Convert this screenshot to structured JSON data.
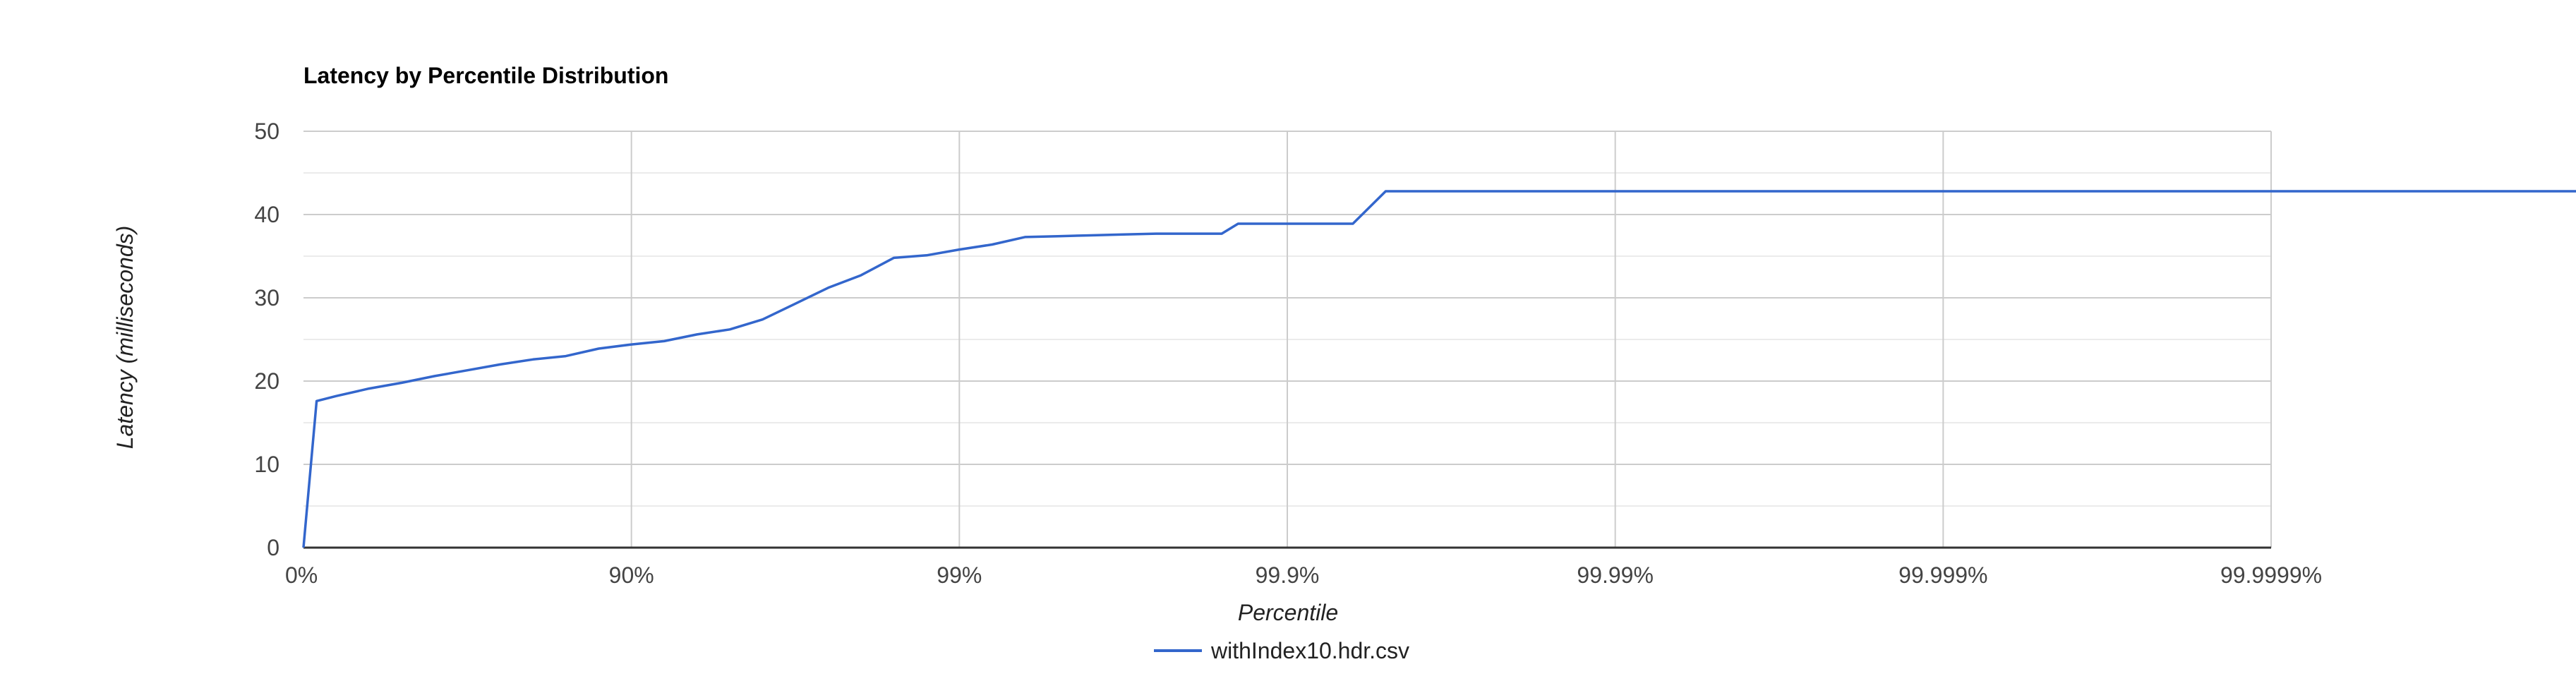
{
  "chart_data": {
    "type": "line",
    "title": "Latency by Percentile Distribution",
    "xlabel": "Percentile",
    "ylabel": "Latency (milliseconds)",
    "x_scale": "percentile-nines",
    "x_ticks": [
      "0%",
      "90%",
      "99%",
      "99.9%",
      "99.99%",
      "99.999%",
      "99.9999%"
    ],
    "x_tick_nines": [
      0,
      1,
      2,
      3,
      4,
      5,
      6
    ],
    "y_ticks": [
      0,
      10,
      20,
      30,
      40,
      50
    ],
    "ylim": [
      0,
      50
    ],
    "grid": true,
    "legend_position": "bottom",
    "colors": {
      "series": "#3366cc",
      "grid_major": "#cccccc",
      "grid_minor": "#ebebeb",
      "axis": "#333333",
      "text": "#444444",
      "title": "#000000"
    },
    "series": [
      {
        "name": "withIndex10.hdr.csv",
        "nines": [
          0,
          0.04,
          0.1,
          0.2,
          0.3,
          0.4,
          0.5,
          0.6,
          0.7,
          0.8,
          0.9,
          1.0,
          1.1,
          1.2,
          1.3,
          1.4,
          1.5,
          1.6,
          1.7,
          1.8,
          1.9,
          2.0,
          2.1,
          2.2,
          2.3,
          2.4,
          2.5,
          2.6,
          2.7,
          2.8,
          2.85,
          2.9,
          3.0,
          3.1,
          3.2,
          3.3,
          3.4,
          7.0
        ],
        "latency": [
          0,
          17.6,
          18.2,
          19.1,
          19.8,
          20.6,
          21.3,
          22.0,
          22.6,
          23.0,
          23.9,
          24.4,
          24.8,
          25.6,
          26.2,
          27.4,
          29.3,
          31.2,
          32.7,
          34.8,
          35.1,
          35.8,
          36.4,
          37.3,
          37.4,
          37.5,
          37.6,
          37.7,
          37.7,
          37.7,
          38.9,
          38.9,
          38.9,
          38.9,
          38.9,
          42.8,
          42.8,
          42.8
        ]
      }
    ]
  }
}
